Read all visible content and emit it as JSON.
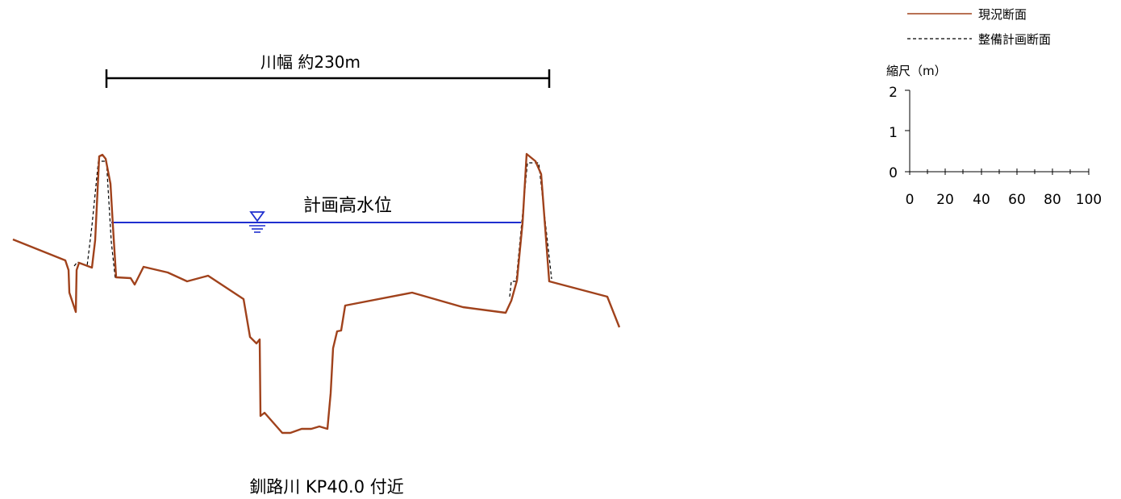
{
  "width_label": "川幅 約230m",
  "hwl_label": "計画高水位",
  "caption": "釧路川 KP40.0 付近",
  "legend": {
    "current": "現況断面",
    "planned": "整備計画断面"
  },
  "scale": {
    "title": "縮尺（m）",
    "v_ticks": [
      "0",
      "1",
      "2"
    ],
    "h_ticks": [
      "0",
      "20",
      "40",
      "60",
      "80",
      "100"
    ]
  },
  "colors": {
    "current_section": "#a0421c",
    "planned_section": "#000000",
    "water_level": "#1f2fcf",
    "water_mark": "#1f2fcf"
  },
  "icons": {
    "water_level_mark": "water-level-triangle-icon"
  }
}
